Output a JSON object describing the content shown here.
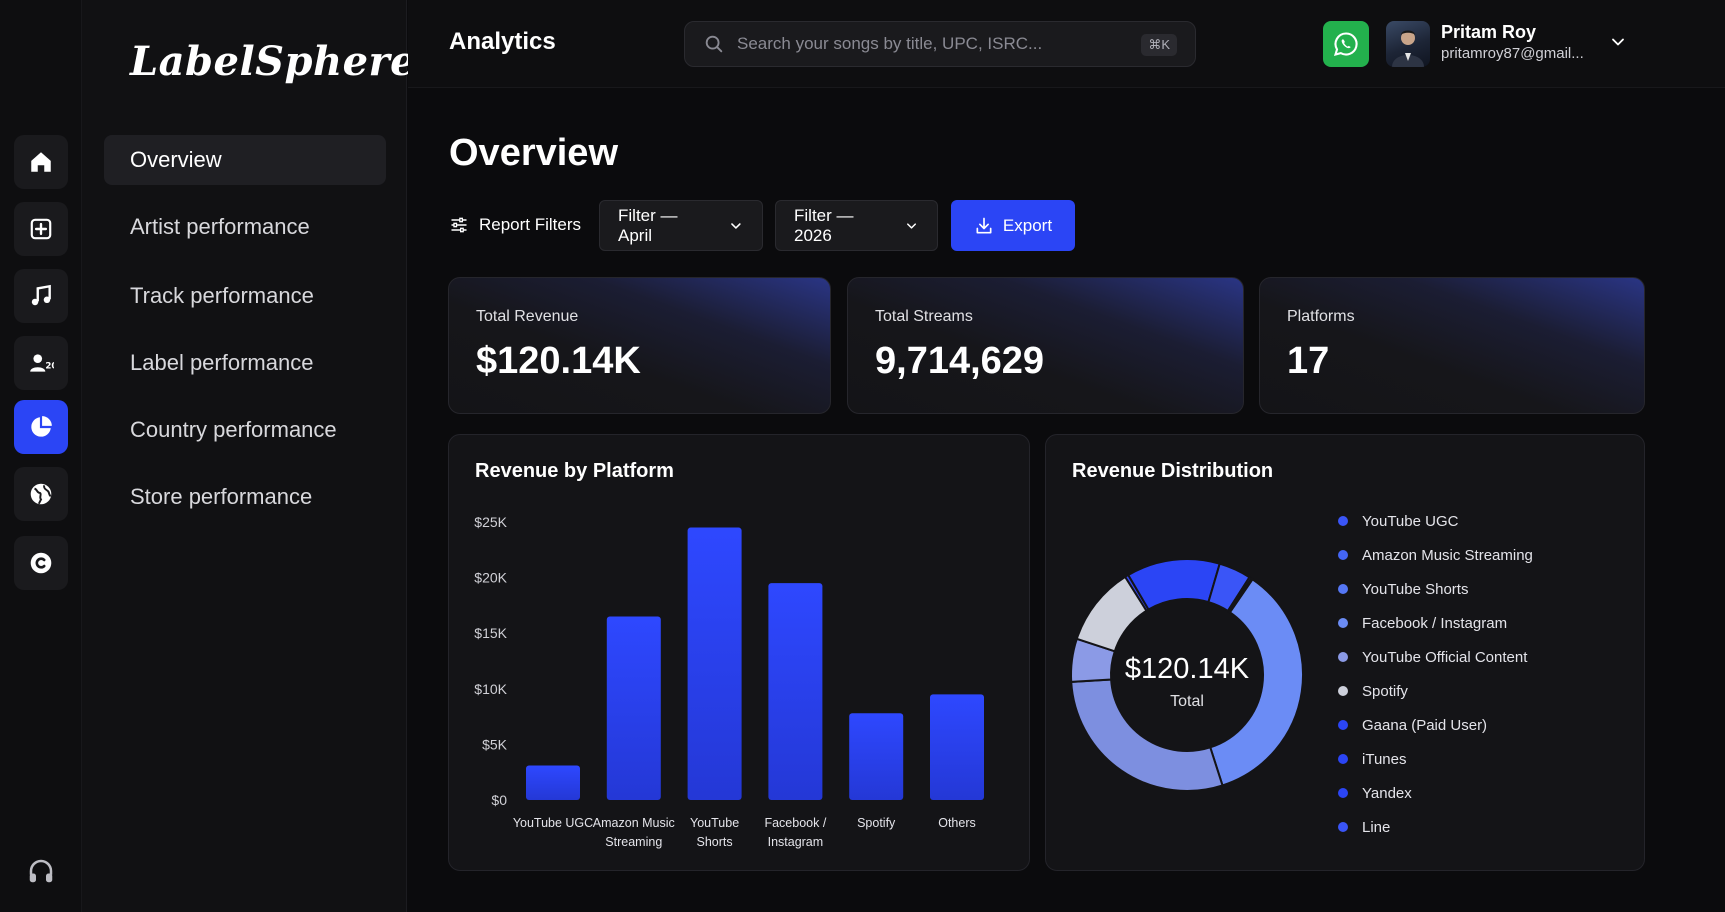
{
  "app": {
    "logo": "LabelSphere"
  },
  "topbar": {
    "title": "Analytics",
    "search_placeholder": "Search your songs by title, UPC, ISRC...",
    "search_shortcut": "⌘K",
    "user_name": "Pritam Roy",
    "user_email": "pritamroy87@gmail..."
  },
  "rail": {
    "items": [
      "home-icon",
      "add-release-icon",
      "music-note-icon",
      "artists-icon",
      "analytics-pie-icon",
      "globe-icon",
      "copyright-icon"
    ],
    "active": "analytics-pie-icon",
    "footer_icon": "headphones-icon"
  },
  "nav": {
    "items": [
      {
        "label": "Overview",
        "active": true
      },
      {
        "label": "Artist performance"
      },
      {
        "label": "Track performance"
      },
      {
        "label": "Label performance"
      },
      {
        "label": "Country performance"
      },
      {
        "label": "Store performance"
      }
    ]
  },
  "main": {
    "title": "Overview",
    "filters_label": "Report Filters",
    "month_filter": "Filter — April",
    "year_filter": "Filter — 2026",
    "export_label": "Export"
  },
  "stats": [
    {
      "label": "Total Revenue",
      "value": "$120.14K"
    },
    {
      "label": "Total Streams",
      "value": "9,714,629"
    },
    {
      "label": "Platforms",
      "value": "17"
    }
  ],
  "colors": {
    "accent": "#2b45f5",
    "whatsapp": "#23b14d",
    "background": "#0b0b0d"
  },
  "chart_data": [
    {
      "type": "bar",
      "title": "Revenue by Platform",
      "categories": [
        "YouTube UGC",
        "Amazon Music Streaming",
        "YouTube Shorts",
        "Facebook / Instagram",
        "Spotify",
        "Others"
      ],
      "category_lines": [
        [
          "YouTube UGC"
        ],
        [
          "Amazon Music",
          "Streaming"
        ],
        [
          "YouTube",
          "Shorts"
        ],
        [
          "Facebook /",
          "Instagram"
        ],
        [
          "Spotify"
        ],
        [
          "Others"
        ]
      ],
      "values": [
        3100,
        16500,
        24500,
        19500,
        7800,
        9500
      ],
      "ylim": [
        0,
        25000
      ],
      "yticks": [
        0,
        5000,
        10000,
        15000,
        20000,
        25000
      ],
      "ytick_labels": [
        "$0",
        "$5K",
        "$10K",
        "$15K",
        "$20K",
        "$25K"
      ],
      "bar_color": "#2b45f5",
      "grid": false
    },
    {
      "type": "pie",
      "title": "Revenue Distribution",
      "center_value": "$120.14K",
      "center_label": "Total",
      "legend_position": "right",
      "labels": [
        "YouTube UGC",
        "Amazon Music Streaming",
        "YouTube Shorts",
        "Facebook / Instagram",
        "YouTube Official Content",
        "Spotify",
        "Gaana (Paid User)",
        "iTunes",
        "Yandex",
        "Line"
      ],
      "values": [
        35.5,
        29,
        6,
        11,
        0.5,
        13,
        4.5,
        0.3,
        0.1,
        0.1
      ],
      "colors": [
        "#6b8cf5",
        "#7d8fe0",
        "#8b9ae6",
        "#cdd0db",
        "#3245f0",
        "#2b45f5",
        "#3a55f7",
        "#2a3ff0",
        "#3550f5",
        "#4060f5"
      ],
      "legend_colors": [
        "#3a55f7",
        "#4466f5",
        "#5577f5",
        "#6b8cf5",
        "#8b9ae6",
        "#cdd0db",
        "#2b45f5",
        "#2b45f5",
        "#2b45f5",
        "#3a55f7"
      ]
    }
  ]
}
